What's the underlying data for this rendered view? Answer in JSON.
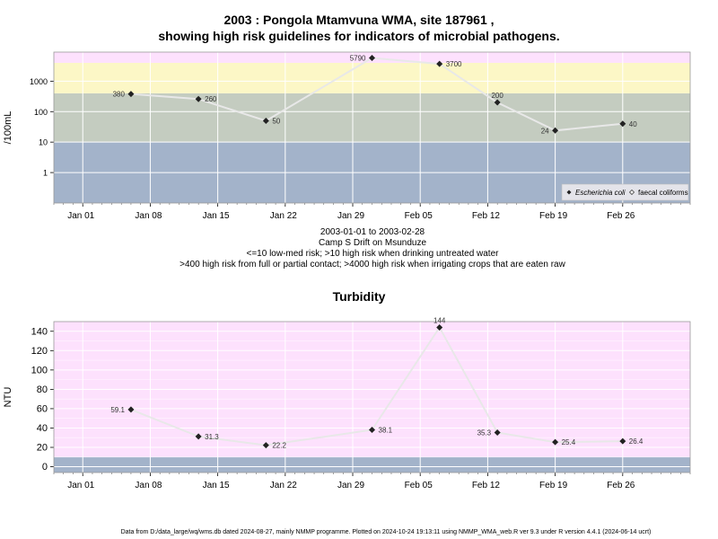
{
  "chart_data": [
    {
      "type": "line",
      "title": "2003 : Pongola Mtamvuna WMA, site 187961 ,",
      "subtitle": "showing high risk guidelines for indicators of microbial pathogens.",
      "ylabel": "/100mL",
      "y_scale": "log",
      "ylim": [
        0.1,
        9000
      ],
      "y_ticks": [
        {
          "value": 1,
          "label": "1"
        },
        {
          "value": 10,
          "label": "10"
        },
        {
          "value": 100,
          "label": "100"
        },
        {
          "value": 1000,
          "label": "1000"
        }
      ],
      "x_ticks": [
        "Jan 01",
        "Jan 08",
        "Jan 15",
        "Jan 22",
        "Jan 29",
        "Feb 05",
        "Feb 12",
        "Feb 19",
        "Feb 26"
      ],
      "x_tick_dates": [
        "2003-01-01",
        "2003-01-08",
        "2003-01-15",
        "2003-01-22",
        "2003-01-29",
        "2003-02-05",
        "2003-02-12",
        "2003-02-19",
        "2003-02-26"
      ],
      "xlim": [
        "2002-12-29",
        "2003-03-05"
      ],
      "risk_bands": [
        {
          "from": 0.1,
          "to": 10,
          "color": "#a3b3ca"
        },
        {
          "from": 10,
          "to": 400,
          "color": "#c4ccc0"
        },
        {
          "from": 400,
          "to": 4000,
          "color": "#fcf7c6"
        },
        {
          "from": 4000,
          "to": 9000,
          "color": "#fde1fd"
        }
      ],
      "series": [
        {
          "name": "Escherichia coli",
          "marker": "filled-diamond",
          "points": [
            {
              "date": "2003-01-06",
              "value": 380,
              "label": "380",
              "label_side": "left"
            },
            {
              "date": "2003-01-13",
              "value": 260,
              "label": "260",
              "label_side": "right"
            },
            {
              "date": "2003-01-20",
              "value": 50,
              "label": "50",
              "label_side": "right"
            },
            {
              "date": "2003-01-31",
              "value": 5790,
              "label": "5790",
              "label_side": "left"
            },
            {
              "date": "2003-02-07",
              "value": 3700,
              "label": "3700",
              "label_side": "right"
            },
            {
              "date": "2003-02-13",
              "value": 200,
              "label": "200",
              "label_side": "top"
            },
            {
              "date": "2003-02-19",
              "value": 24,
              "label": "24",
              "label_side": "left"
            },
            {
              "date": "2003-02-26",
              "value": 40,
              "label": "40",
              "label_side": "right"
            }
          ]
        },
        {
          "name": "faecal coliforms",
          "marker": "open-diamond",
          "points": []
        }
      ],
      "legend": {
        "position": "bottom-right"
      },
      "grid": true
    },
    {
      "type": "line",
      "title": "Turbidity",
      "ylabel": "NTU",
      "ylim": [
        -6,
        150
      ],
      "y_ticks": [
        {
          "value": 0,
          "label": "0"
        },
        {
          "value": 20,
          "label": "20"
        },
        {
          "value": 40,
          "label": "40"
        },
        {
          "value": 60,
          "label": "60"
        },
        {
          "value": 80,
          "label": "80"
        },
        {
          "value": 100,
          "label": "100"
        },
        {
          "value": 120,
          "label": "120"
        },
        {
          "value": 140,
          "label": "140"
        }
      ],
      "x_ticks": [
        "Jan 01",
        "Jan 08",
        "Jan 15",
        "Jan 22",
        "Jan 29",
        "Feb 05",
        "Feb 12",
        "Feb 19",
        "Feb 26"
      ],
      "x_tick_dates": [
        "2003-01-01",
        "2003-01-08",
        "2003-01-15",
        "2003-01-22",
        "2003-01-29",
        "2003-02-05",
        "2003-02-12",
        "2003-02-19",
        "2003-02-26"
      ],
      "xlim": [
        "2002-12-29",
        "2003-03-05"
      ],
      "risk_bands": [
        {
          "from": -6,
          "to": 10,
          "color": "#a3b3ca"
        },
        {
          "from": 10,
          "to": 150,
          "color": "#fde1fd"
        }
      ],
      "series": [
        {
          "marker": "filled-diamond",
          "points": [
            {
              "date": "2003-01-06",
              "value": 59.1,
              "label": "59.1",
              "label_side": "left"
            },
            {
              "date": "2003-01-13",
              "value": 31.3,
              "label": "31.3",
              "label_side": "right"
            },
            {
              "date": "2003-01-20",
              "value": 22.2,
              "label": "22.2",
              "label_side": "right"
            },
            {
              "date": "2003-01-31",
              "value": 38.1,
              "label": "38.1",
              "label_side": "right"
            },
            {
              "date": "2003-02-07",
              "value": 144,
              "label": "144",
              "label_side": "top"
            },
            {
              "date": "2003-02-13",
              "value": 35.3,
              "label": "35.3",
              "label_side": "left"
            },
            {
              "date": "2003-02-19",
              "value": 25.4,
              "label": "25.4",
              "label_side": "right"
            },
            {
              "date": "2003-02-26",
              "value": 26.4,
              "label": "26.4",
              "label_side": "right"
            }
          ]
        }
      ],
      "grid": true
    }
  ],
  "notes": {
    "date_range": "2003-01-01 to 2003-02-28",
    "site": "Camp S Drift on Msunduze",
    "risk_1": "<=10 low-med risk; >10 high risk when drinking untreated water",
    "risk_2": ">400 high risk from full or partial contact; >4000 high risk when irrigating crops that are eaten raw"
  },
  "footer": "Data from D:/data_large/wq/wms.db dated 2024-08-27, mainly NMMP programme. Plotted on 2024-10-24 19:13:11 using NMMP_WMA_web.R ver 9.3 under R version 4.4.1 (2024-06-14 ucrt)",
  "colors": {
    "line": "#e8e8e8",
    "grid": "#ffffff",
    "marker": "#222222",
    "frame": "#999999"
  }
}
